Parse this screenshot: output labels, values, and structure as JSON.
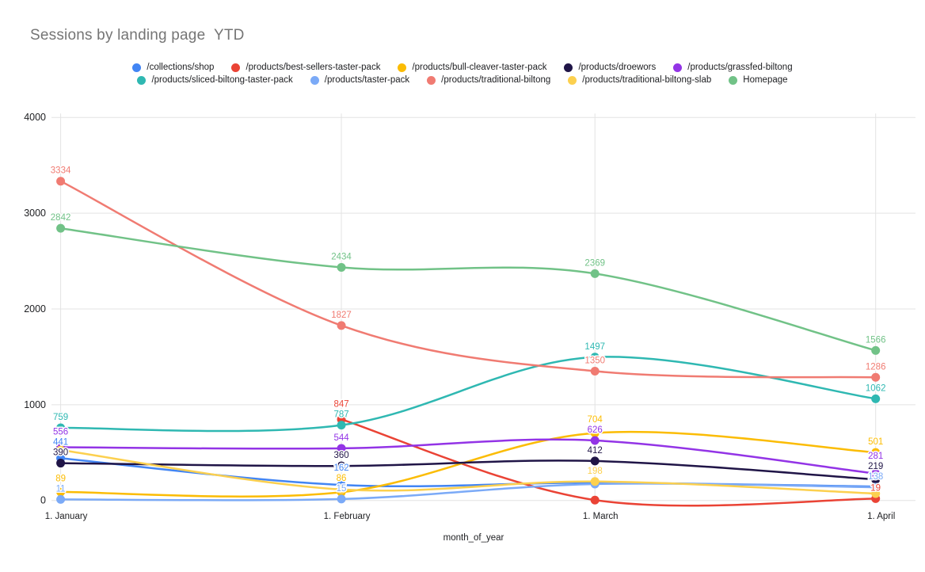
{
  "title": "Sessions by landing page  YTD",
  "chart_data": {
    "type": "line",
    "smooth": true,
    "grid": true,
    "legend_position": "top",
    "xlabel": "month_of_year",
    "x_categories": [
      "1. January",
      "1. February",
      "1. March",
      "1. April"
    ],
    "x_days": [
      0,
      31,
      59,
      90
    ],
    "ylim": [
      0,
      4000
    ],
    "yticks": [
      0,
      1000,
      2000,
      3000,
      4000
    ],
    "series": [
      {
        "name": "/collections/shop",
        "color": "#4285F4",
        "values": [
          441,
          162,
          185,
          146
        ],
        "labels": [
          441,
          162,
          null,
          null
        ]
      },
      {
        "name": "/products/best-sellers-taster-pack",
        "color": "#EA4335",
        "values": [
          null,
          847,
          4,
          19
        ],
        "labels": [
          null,
          847,
          null,
          19
        ]
      },
      {
        "name": "/products/bull-cleaver-taster-pack",
        "color": "#FBBC04",
        "values": [
          89,
          86,
          704,
          501
        ],
        "labels": [
          89,
          86,
          704,
          501
        ]
      },
      {
        "name": "/products/droewors",
        "color": "#201547",
        "values": [
          390,
          360,
          412,
          219
        ],
        "labels": [
          390,
          360,
          412,
          219
        ]
      },
      {
        "name": "/products/grassfed-biltong",
        "color": "#9334E6",
        "values": [
          556,
          544,
          626,
          281
        ],
        "labels": [
          556,
          544,
          626,
          281
        ]
      },
      {
        "name": "/products/sliced-biltong-taster-pack",
        "color": "#2FB8B2",
        "values": [
          759,
          787,
          1497,
          1062
        ],
        "labels": [
          759,
          787,
          1497,
          1062
        ]
      },
      {
        "name": "/products/taster-pack",
        "color": "#7BAAF7",
        "values": [
          11,
          15,
          171,
          138
        ],
        "labels": [
          11,
          15,
          null,
          138
        ]
      },
      {
        "name": "/products/traditional-biltong",
        "color": "#F07B72",
        "values": [
          3334,
          1827,
          1350,
          1286
        ],
        "labels": [
          3334,
          1827,
          1350,
          1286
        ]
      },
      {
        "name": "/products/traditional-biltong-slab",
        "color": "#FCD04F",
        "values": [
          527,
          115,
          198,
          72
        ],
        "labels": [
          null,
          null,
          198,
          null
        ]
      },
      {
        "name": "Homepage",
        "color": "#71C287",
        "values": [
          2842,
          2434,
          2369,
          1566
        ],
        "labels": [
          2842,
          2434,
          2369,
          1566
        ]
      }
    ]
  }
}
